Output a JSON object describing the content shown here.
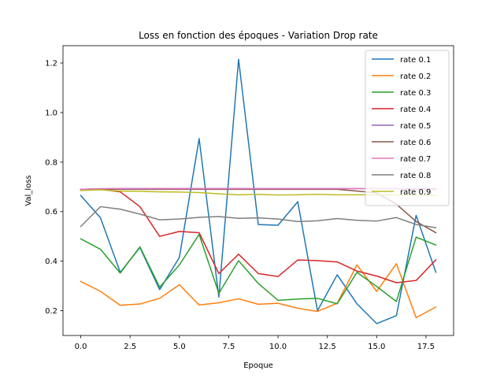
{
  "chart_data": {
    "type": "line",
    "title": "Loss en fonction des époques - Variation Drop rate",
    "xlabel": "Epoque",
    "ylabel": "Val_loss",
    "xlim": [
      -0.9,
      18.9
    ],
    "ylim": [
      0.1,
      1.27
    ],
    "x_ticks": [
      0,
      2.5,
      5,
      7.5,
      10,
      12.5,
      15,
      17.5
    ],
    "x_tick_labels": [
      "0.0",
      "2.5",
      "5.0",
      "7.5",
      "10.0",
      "12.5",
      "15.0",
      "17.5"
    ],
    "y_ticks": [
      0.2,
      0.4,
      0.6,
      0.8,
      1.0,
      1.2
    ],
    "y_tick_labels": [
      "0.2",
      "0.4",
      "0.6",
      "0.8",
      "1.0",
      "1.2"
    ],
    "grid": false,
    "legend_position": "top-right",
    "x": [
      0,
      1,
      2,
      3,
      4,
      5,
      6,
      7,
      8,
      9,
      10,
      11,
      12,
      13,
      14,
      15,
      16,
      17,
      18
    ],
    "series": [
      {
        "name": "rate 0.1",
        "color": "#1f77b4",
        "values": [
          0.665,
          0.575,
          0.355,
          0.455,
          0.285,
          0.415,
          0.895,
          0.255,
          1.215,
          0.548,
          0.545,
          0.64,
          0.2,
          0.345,
          0.228,
          0.148,
          0.18,
          0.585,
          0.355
        ]
      },
      {
        "name": "rate 0.2",
        "color": "#ff7f0e",
        "values": [
          0.318,
          0.278,
          0.222,
          0.227,
          0.25,
          0.305,
          0.223,
          0.232,
          0.248,
          0.226,
          0.23,
          0.21,
          0.197,
          0.23,
          0.385,
          0.278,
          0.39,
          0.172,
          0.215
        ]
      },
      {
        "name": "rate 0.3",
        "color": "#2ca02c",
        "values": [
          0.49,
          0.448,
          0.352,
          0.458,
          0.295,
          0.385,
          0.508,
          0.27,
          0.402,
          0.31,
          0.242,
          0.247,
          0.25,
          0.228,
          0.355,
          0.298,
          0.237,
          0.497,
          0.465
        ]
      },
      {
        "name": "rate 0.4",
        "color": "#d62728",
        "values": [
          0.69,
          0.69,
          0.68,
          0.62,
          0.5,
          0.52,
          0.515,
          0.35,
          0.428,
          0.35,
          0.338,
          0.405,
          0.402,
          0.397,
          0.36,
          0.34,
          0.313,
          0.322,
          0.405
        ]
      },
      {
        "name": "rate 0.5",
        "color": "#9467bd",
        "values": [
          0.69,
          0.692,
          0.693,
          0.693,
          0.693,
          0.693,
          0.693,
          0.693,
          0.693,
          0.693,
          0.693,
          0.693,
          0.693,
          0.693,
          0.693,
          0.693,
          0.693,
          0.693,
          0.693
        ]
      },
      {
        "name": "rate 0.6",
        "color": "#8c564b",
        "values": [
          0.69,
          0.69,
          0.69,
          0.69,
          0.69,
          0.69,
          0.69,
          0.69,
          0.69,
          0.69,
          0.69,
          0.69,
          0.69,
          0.69,
          0.683,
          0.676,
          0.63,
          0.56,
          0.515
        ]
      },
      {
        "name": "rate 0.7",
        "color": "#e377c2",
        "values": [
          0.69,
          0.693,
          0.693,
          0.693,
          0.693,
          0.693,
          0.693,
          0.693,
          0.693,
          0.693,
          0.693,
          0.693,
          0.693,
          0.693,
          0.693,
          0.693,
          0.693,
          0.69,
          0.688
        ]
      },
      {
        "name": "rate 0.8",
        "color": "#7f7f7f",
        "values": [
          0.54,
          0.62,
          0.61,
          0.59,
          0.567,
          0.57,
          0.577,
          0.58,
          0.573,
          0.575,
          0.57,
          0.56,
          0.563,
          0.572,
          0.565,
          0.562,
          0.576,
          0.548,
          0.535
        ]
      },
      {
        "name": "rate 0.9",
        "color": "#bcbd22",
        "values": [
          0.685,
          0.688,
          0.683,
          0.682,
          0.68,
          0.679,
          0.677,
          0.672,
          0.668,
          0.67,
          0.667,
          0.668,
          0.67,
          0.668,
          0.668,
          0.668,
          0.667,
          0.665,
          0.665
        ]
      }
    ]
  }
}
